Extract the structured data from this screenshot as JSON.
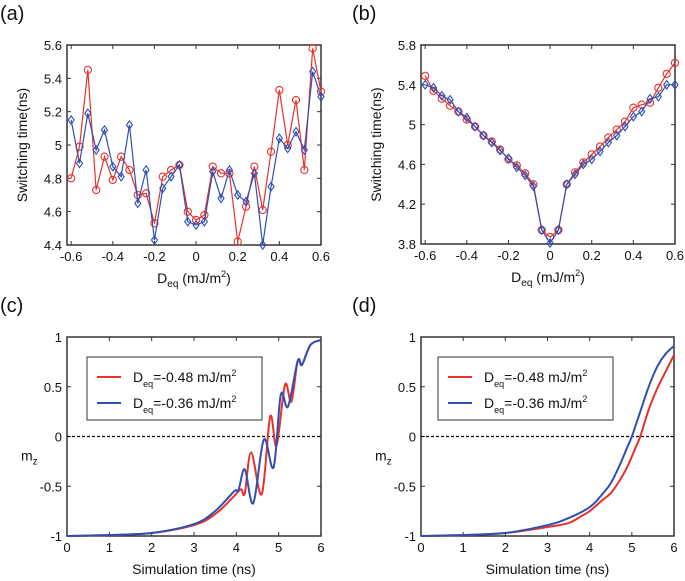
{
  "colors": {
    "red": "#e8312a",
    "blue": "#2f4fb5",
    "axis": "#333333"
  },
  "chart_data": [
    {
      "panel_label": "(a)",
      "type": "line",
      "marker_red": "circle",
      "marker_blue": "diamond",
      "xlabel_main": "D",
      "xlabel_sub": "eq",
      "xlabel_unit": " (mJ/m",
      "xlabel_sup": "2",
      "xlabel_end": ")",
      "ylabel": "Switching time(ns)",
      "xlim": [
        -0.62,
        0.6
      ],
      "ylim": [
        4.4,
        5.6
      ],
      "xticks": [
        -0.6,
        -0.4,
        -0.2,
        0,
        0.2,
        0.4,
        0.6
      ],
      "xtick_labels": [
        "-0.6",
        "-0.4",
        "-0.2",
        "0",
        "0.2",
        "0.4",
        "0.6"
      ],
      "yticks": [
        4.4,
        4.6,
        4.8,
        5,
        5.2,
        5.4,
        5.6
      ],
      "ytick_labels": [
        "4.4",
        "4.6",
        "4.8",
        "5",
        "5.2",
        "5.4",
        "5.6"
      ],
      "x": [
        -0.6,
        -0.56,
        -0.52,
        -0.48,
        -0.44,
        -0.4,
        -0.36,
        -0.32,
        -0.28,
        -0.24,
        -0.2,
        -0.16,
        -0.12,
        -0.08,
        -0.04,
        0,
        0.04,
        0.08,
        0.12,
        0.16,
        0.2,
        0.24,
        0.28,
        0.32,
        0.36,
        0.4,
        0.44,
        0.48,
        0.52,
        0.56,
        0.6
      ],
      "series": [
        {
          "color": "red",
          "values": [
            4.8,
            4.99,
            5.45,
            4.73,
            4.93,
            4.79,
            4.93,
            4.85,
            4.7,
            4.71,
            4.53,
            4.81,
            4.85,
            4.88,
            4.6,
            4.55,
            4.58,
            4.87,
            4.83,
            4.83,
            4.42,
            4.63,
            4.87,
            4.61,
            4.96,
            5.33,
            5.0,
            5.27,
            4.85,
            5.58,
            5.32
          ]
        },
        {
          "color": "blue",
          "values": [
            5.15,
            4.89,
            5.19,
            4.97,
            5.09,
            4.87,
            4.81,
            5.12,
            4.65,
            4.85,
            4.43,
            4.74,
            4.81,
            4.88,
            4.54,
            4.52,
            4.54,
            4.84,
            4.68,
            4.85,
            4.7,
            4.66,
            4.83,
            4.4,
            4.75,
            5.04,
            4.98,
            5.08,
            4.97,
            5.44,
            5.29
          ]
        }
      ]
    },
    {
      "panel_label": "(b)",
      "type": "line",
      "marker_red": "circle",
      "marker_blue": "diamond",
      "xlabel_main": "D",
      "xlabel_sub": "eq",
      "xlabel_unit": " (mJ/m",
      "xlabel_sup": "2",
      "xlabel_end": ")",
      "ylabel": "Switching time(ns)",
      "xlim": [
        -0.62,
        0.6
      ],
      "ylim": [
        3.8,
        5.8
      ],
      "xticks": [
        -0.6,
        -0.4,
        -0.2,
        0,
        0.2,
        0.4,
        0.6
      ],
      "xtick_labels": [
        "-0.6",
        "-0.4",
        "-0.2",
        "0",
        "0.2",
        "0.4",
        "0.6"
      ],
      "yticks": [
        3.8,
        4.2,
        4.6,
        5,
        5.4,
        5.8
      ],
      "ytick_labels": [
        "3.8",
        "4.2",
        "4.6",
        "5",
        "5.4",
        "5.8"
      ],
      "x": [
        -0.6,
        -0.56,
        -0.52,
        -0.48,
        -0.44,
        -0.4,
        -0.36,
        -0.32,
        -0.28,
        -0.24,
        -0.2,
        -0.16,
        -0.12,
        -0.08,
        -0.04,
        0,
        0.04,
        0.08,
        0.12,
        0.16,
        0.2,
        0.24,
        0.28,
        0.32,
        0.36,
        0.4,
        0.44,
        0.48,
        0.52,
        0.56,
        0.6
      ],
      "series": [
        {
          "color": "red",
          "values": [
            5.49,
            5.34,
            5.26,
            5.19,
            5.13,
            5.05,
            4.98,
            4.89,
            4.83,
            4.75,
            4.65,
            4.59,
            4.51,
            4.4,
            3.94,
            3.87,
            3.94,
            4.4,
            4.52,
            4.62,
            4.7,
            4.78,
            4.87,
            4.95,
            5.03,
            5.17,
            5.2,
            5.22,
            5.37,
            5.51,
            5.62
          ]
        },
        {
          "color": "blue",
          "values": [
            5.4,
            5.37,
            5.29,
            5.25,
            5.13,
            5.07,
            4.98,
            4.89,
            4.82,
            4.74,
            4.66,
            4.57,
            4.49,
            4.38,
            3.94,
            3.81,
            3.94,
            4.4,
            4.5,
            4.6,
            4.65,
            4.73,
            4.82,
            4.89,
            4.98,
            5.08,
            5.13,
            5.26,
            5.28,
            5.4,
            5.4
          ]
        }
      ]
    },
    {
      "panel_label": "(c)",
      "type": "line",
      "xlabel": "Simulation time (ns)",
      "ylabel_main": "m",
      "ylabel_sub": "z",
      "xlim": [
        0,
        6
      ],
      "ylim": [
        -1,
        1
      ],
      "xticks": [
        0,
        1,
        2,
        3,
        4,
        5,
        6
      ],
      "xtick_labels": [
        "0",
        "1",
        "2",
        "3",
        "4",
        "5",
        "6"
      ],
      "yticks": [
        -1,
        -0.5,
        0,
        0.5,
        1
      ],
      "ytick_labels": [
        "-1",
        "-0.5",
        "0",
        "0.5",
        "1"
      ],
      "reference_line": {
        "y": 0,
        "style": "dashed"
      },
      "legend_position": "top-left",
      "series": [
        {
          "name_main": "D",
          "name_sub": "eq",
          "name_rest": "=-0.48 mJ/m",
          "name_sup": "2",
          "color": "red",
          "x": [
            0,
            1,
            2,
            3,
            3.5,
            3.9,
            4.05,
            4.12,
            4.2,
            4.35,
            4.6,
            4.8,
            4.95,
            5.15,
            5.3,
            5.45,
            5.55,
            5.75,
            6
          ],
          "y": [
            -1,
            -0.99,
            -0.97,
            -0.89,
            -0.78,
            -0.62,
            -0.55,
            -0.53,
            -0.57,
            -0.16,
            -0.58,
            0.2,
            -0.09,
            0.52,
            0.35,
            0.76,
            0.72,
            0.92,
            0.97
          ]
        },
        {
          "name_main": "D",
          "name_sub": "eq",
          "name_rest": "=-0.36 mJ/m",
          "name_sup": "2",
          "color": "blue",
          "x": [
            0,
            1,
            2,
            3,
            3.5,
            3.95,
            4.05,
            4.2,
            4.4,
            4.65,
            4.88,
            5.05,
            5.22,
            5.45,
            5.55,
            5.75,
            6
          ],
          "y": [
            -1,
            -0.99,
            -0.97,
            -0.88,
            -0.75,
            -0.55,
            -0.54,
            -0.33,
            -0.67,
            -0.03,
            -0.31,
            0.42,
            0.3,
            0.76,
            0.72,
            0.92,
            0.97
          ]
        }
      ]
    },
    {
      "panel_label": "(d)",
      "type": "line",
      "xlabel": "Simulation time (ns)",
      "ylabel_main": "m",
      "ylabel_sub": "z",
      "xlim": [
        0,
        6
      ],
      "ylim": [
        -1,
        1
      ],
      "xticks": [
        0,
        1,
        2,
        3,
        4,
        5,
        6
      ],
      "xtick_labels": [
        "0",
        "1",
        "2",
        "3",
        "4",
        "5",
        "6"
      ],
      "yticks": [
        -1,
        -0.5,
        0,
        0.5,
        1
      ],
      "ytick_labels": [
        "-1",
        "-0.5",
        "0",
        "0.5",
        "1"
      ],
      "reference_line": {
        "y": 0,
        "style": "dashed"
      },
      "legend_position": "top-left",
      "series": [
        {
          "name_main": "D",
          "name_sub": "eq",
          "name_rest": "=-0.48 mJ/m",
          "name_sup": "2",
          "color": "red",
          "x": [
            0,
            1,
            2,
            3,
            3.5,
            3.8,
            4.0,
            4.3,
            4.5,
            4.7,
            4.9,
            5.1,
            5.2,
            5.4,
            5.6,
            5.8,
            6
          ],
          "y": [
            -1,
            -0.99,
            -0.97,
            -0.91,
            -0.87,
            -0.8,
            -0.75,
            -0.64,
            -0.57,
            -0.45,
            -0.3,
            -0.1,
            0.0,
            0.27,
            0.48,
            0.65,
            0.82
          ]
        },
        {
          "name_main": "D",
          "name_sub": "eq",
          "name_rest": "=-0.36 mJ/m",
          "name_sup": "2",
          "color": "blue",
          "x": [
            0,
            1,
            2,
            3,
            3.5,
            4.0,
            4.3,
            4.5,
            4.7,
            4.9,
            5.0,
            5.2,
            5.4,
            5.6,
            5.8,
            6
          ],
          "y": [
            -1,
            -0.99,
            -0.97,
            -0.89,
            -0.82,
            -0.71,
            -0.58,
            -0.47,
            -0.3,
            -0.1,
            0.0,
            0.25,
            0.5,
            0.7,
            0.83,
            0.91
          ]
        }
      ]
    }
  ]
}
